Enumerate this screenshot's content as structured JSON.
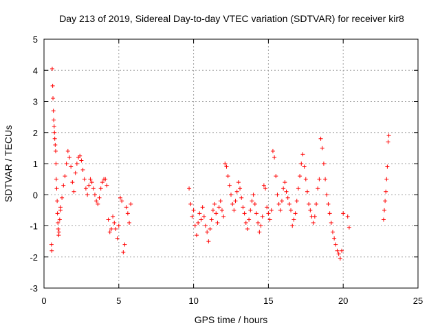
{
  "chart_data": {
    "type": "scatter",
    "title": "Day 213 of 2019, Sidereal Day-to-day VTEC variation (SDTVAR) for receiver kir8",
    "xlabel": "GPS time / hours",
    "ylabel": "SDTVAR / TECUs",
    "xlim": [
      0,
      25
    ],
    "ylim": [
      -3,
      5
    ],
    "xticks": [
      "0",
      "5",
      "10",
      "15",
      "20",
      "25"
    ],
    "yticks": [
      "-3",
      "-2",
      "-1",
      "0",
      "1",
      "2",
      "3",
      "4",
      "5"
    ],
    "grid": true,
    "marker": "+",
    "color": "#ff0000",
    "segments": [
      {
        "x": [
          0.5,
          0.52,
          0.55,
          0.58,
          0.6,
          0.63,
          0.65,
          0.68,
          0.7,
          0.72,
          0.75,
          0.78,
          0.8,
          0.82,
          0.85,
          0.88,
          0.9,
          0.93,
          0.95,
          0.98,
          1.0,
          1.05,
          1.1
        ],
        "y": [
          -1.6,
          -1.8,
          4.05,
          3.5,
          3.1,
          2.7,
          2.4,
          2.2,
          2.0,
          1.8,
          1.6,
          1.4,
          1.0,
          0.5,
          0.2,
          -0.2,
          -0.6,
          -0.9,
          -1.1,
          -1.3,
          -1.2,
          -0.8,
          -0.5
        ]
      },
      {
        "x": [
          1.1,
          1.2,
          1.3,
          1.4,
          1.5,
          1.6,
          1.7,
          1.8,
          1.9,
          2.0,
          2.1,
          2.2,
          2.3,
          2.4,
          2.5,
          2.6,
          2.7,
          2.8,
          2.9,
          3.0,
          3.1,
          3.2,
          3.3,
          3.4,
          3.5,
          3.6,
          3.7,
          3.8,
          3.9,
          4.0
        ],
        "y": [
          -0.4,
          -0.1,
          0.3,
          0.6,
          1.0,
          1.4,
          1.2,
          0.9,
          0.4,
          0.1,
          0.7,
          1.0,
          1.2,
          1.25,
          1.1,
          0.8,
          0.5,
          0.2,
          0.0,
          0.3,
          0.5,
          0.4,
          0.2,
          0.0,
          -0.2,
          -0.3,
          -0.1,
          0.2,
          0.4,
          0.5
        ]
      },
      {
        "x": [
          4.1,
          4.2,
          4.3,
          4.4,
          4.5,
          4.6,
          4.7,
          4.8,
          4.9,
          5.0,
          5.1,
          5.2,
          5.3,
          5.4,
          5.5,
          5.6,
          5.7,
          5.8
        ],
        "y": [
          0.5,
          0.3,
          -0.8,
          -1.2,
          -1.1,
          -0.7,
          -0.9,
          -1.1,
          -1.4,
          -1.0,
          -0.1,
          -0.2,
          -1.85,
          -1.6,
          -0.4,
          -0.6,
          -0.9,
          -0.3
        ]
      },
      {
        "x": [
          9.7,
          9.8,
          9.9,
          10.0,
          10.1,
          10.2,
          10.3,
          10.4,
          10.5,
          10.6,
          10.7,
          10.8,
          10.9,
          11.0,
          11.1,
          11.2,
          11.3,
          11.4,
          11.5,
          11.6,
          11.7,
          11.8,
          11.9,
          12.0
        ],
        "y": [
          0.2,
          -0.3,
          -0.7,
          -0.5,
          -1.0,
          -1.3,
          -0.9,
          -0.6,
          -0.8,
          -0.4,
          -0.7,
          -1.0,
          -1.2,
          -1.5,
          -1.1,
          -0.8,
          -0.5,
          -0.3,
          -0.6,
          -0.9,
          -0.4,
          -0.2,
          -0.5,
          -0.7
        ]
      },
      {
        "x": [
          12.1,
          12.2,
          12.3,
          12.4,
          12.5,
          12.6,
          12.7,
          12.8,
          12.9,
          13.0,
          13.1,
          13.2,
          13.3,
          13.4,
          13.5,
          13.6,
          13.7,
          13.8,
          13.9,
          14.0,
          14.1,
          14.2,
          14.3,
          14.4,
          14.5,
          14.6,
          14.7,
          14.8,
          14.9,
          15.0
        ],
        "y": [
          1.0,
          0.9,
          0.6,
          0.3,
          0.0,
          -0.3,
          -0.5,
          -0.2,
          0.1,
          0.4,
          0.2,
          -0.1,
          -0.4,
          -0.6,
          -0.9,
          -1.1,
          -0.8,
          -0.5,
          -0.2,
          0.0,
          -0.3,
          -0.6,
          -0.9,
          -1.2,
          -1.0,
          -0.7,
          0.3,
          0.2,
          -0.4,
          -0.6
        ]
      },
      {
        "x": [
          15.1,
          15.2,
          15.3,
          15.4,
          15.5,
          15.6,
          15.7,
          15.8,
          15.9,
          16.0,
          16.1,
          16.2,
          16.3,
          16.4,
          16.5,
          16.6,
          16.7,
          16.8,
          16.9,
          17.0,
          17.1,
          17.2,
          17.3,
          17.4,
          17.5,
          17.6,
          17.7,
          17.8,
          17.9,
          18.0
        ],
        "y": [
          -0.8,
          -0.5,
          1.4,
          1.2,
          0.6,
          0.0,
          -0.3,
          -0.5,
          -0.2,
          0.2,
          0.4,
          0.1,
          -0.1,
          -0.3,
          -0.5,
          -1.0,
          -0.8,
          -0.6,
          -0.2,
          0.2,
          0.6,
          1.0,
          1.3,
          0.9,
          0.5,
          0.1,
          -0.3,
          -0.5,
          -0.7,
          -0.9
        ]
      },
      {
        "x": [
          18.1,
          18.2,
          18.3,
          18.4,
          18.5,
          18.6,
          18.7,
          18.8,
          18.9,
          19.0,
          19.1,
          19.2,
          19.3,
          19.4,
          19.5,
          19.6,
          19.7,
          19.8,
          19.9,
          20.0,
          20.3,
          20.4
        ],
        "y": [
          -0.7,
          -0.3,
          0.2,
          0.5,
          1.8,
          1.5,
          1.0,
          0.5,
          0.0,
          -0.3,
          -0.6,
          -0.9,
          -1.2,
          -1.4,
          -1.6,
          -1.8,
          -1.9,
          -2.05,
          -1.8,
          -0.6,
          -0.7,
          -1.05
        ]
      },
      {
        "x": [
          22.7,
          22.75,
          22.8,
          22.85,
          22.9,
          22.95,
          23.0,
          23.05
        ],
        "y": [
          -0.8,
          -0.5,
          -0.2,
          0.1,
          0.5,
          0.9,
          1.7,
          1.9
        ]
      }
    ]
  }
}
